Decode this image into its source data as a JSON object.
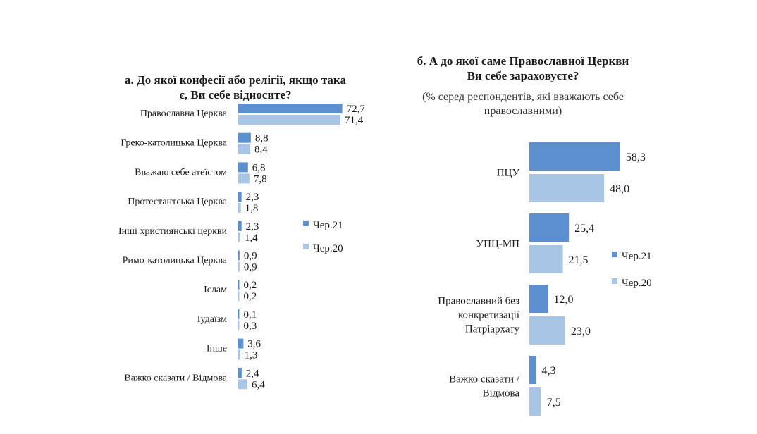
{
  "colors": {
    "chr21": "#5b8fcf",
    "chr20": "#a9c5e6"
  },
  "chart_data": [
    {
      "type": "bar",
      "orientation": "horizontal",
      "title_lines": [
        "а. До якої конфесії або релігії, якщо така",
        "є, Ви себе відносите?"
      ],
      "categories": [
        "Православна Церква",
        "Греко-католицька Церква",
        "Вважаю себе атеїстом",
        "Протестантська Церква",
        "Інші християнські церкви",
        "Римо-католицька Церква",
        "Іслам",
        "Іудаїзм",
        "Інше",
        "Важко сказати / Відмова"
      ],
      "series": [
        {
          "name": "Чер.21",
          "values": [
            72.7,
            8.8,
            6.8,
            2.3,
            2.3,
            0.9,
            0.2,
            0.1,
            3.6,
            2.4
          ],
          "labels": [
            "72,7",
            "8,8",
            "6,8",
            "2,3",
            "2,3",
            "0,9",
            "0,2",
            "0,1",
            "3,6",
            "2,4"
          ]
        },
        {
          "name": "Чер.20",
          "values": [
            71.4,
            8.4,
            7.8,
            1.8,
            1.4,
            0.9,
            0.2,
            0.3,
            1.3,
            6.4
          ],
          "labels": [
            "71,4",
            "8,4",
            "7,8",
            "1,8",
            "1,4",
            "0,9",
            "0,2",
            "0,3",
            "1,3",
            "6,4"
          ]
        }
      ],
      "legend_position": "right"
    },
    {
      "type": "bar",
      "orientation": "horizontal",
      "title_lines": [
        "б. А до якої саме Православної Церкви",
        "Ви себе зараховуєте?"
      ],
      "subtitle_lines": [
        "(% серед респондентів, які вважають себе",
        "православними)"
      ],
      "categories": [
        [
          "ПЦУ"
        ],
        [
          "УПЦ-МП"
        ],
        [
          "Православний без",
          "конкретизації",
          "Патріархату"
        ],
        [
          "Важко сказати /",
          "Відмова"
        ]
      ],
      "series": [
        {
          "name": "Чер.21",
          "values": [
            58.3,
            25.4,
            12.0,
            4.3
          ],
          "labels": [
            "58,3",
            "25,4",
            "12,0",
            "4,3"
          ]
        },
        {
          "name": "Чер.20",
          "values": [
            48.0,
            21.5,
            23.0,
            7.5
          ],
          "labels": [
            "48,0",
            "21,5",
            "23,0",
            "7,5"
          ]
        }
      ],
      "legend_position": "right"
    }
  ]
}
